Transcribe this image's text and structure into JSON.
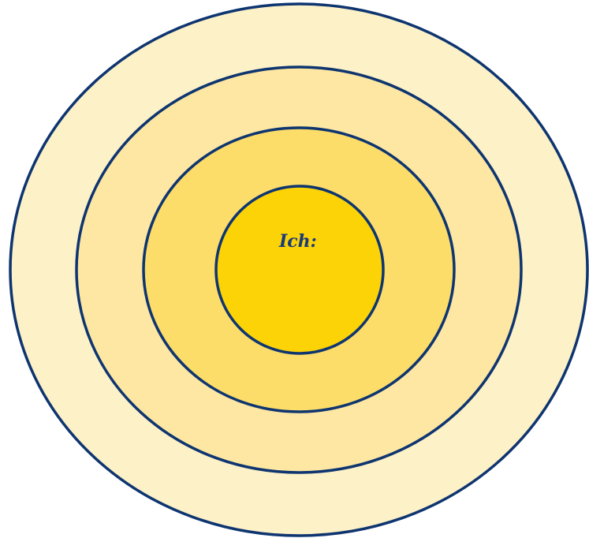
{
  "diagram": {
    "center_label": "Ich:",
    "ring_count": 4,
    "colors": {
      "outline": "#0e3570",
      "label": "#1a3a78",
      "ring_outer": "#fdf1c7",
      "ring_second": "#fde7a2",
      "ring_third": "#fddd69",
      "ring_center": "#fcd307"
    }
  }
}
